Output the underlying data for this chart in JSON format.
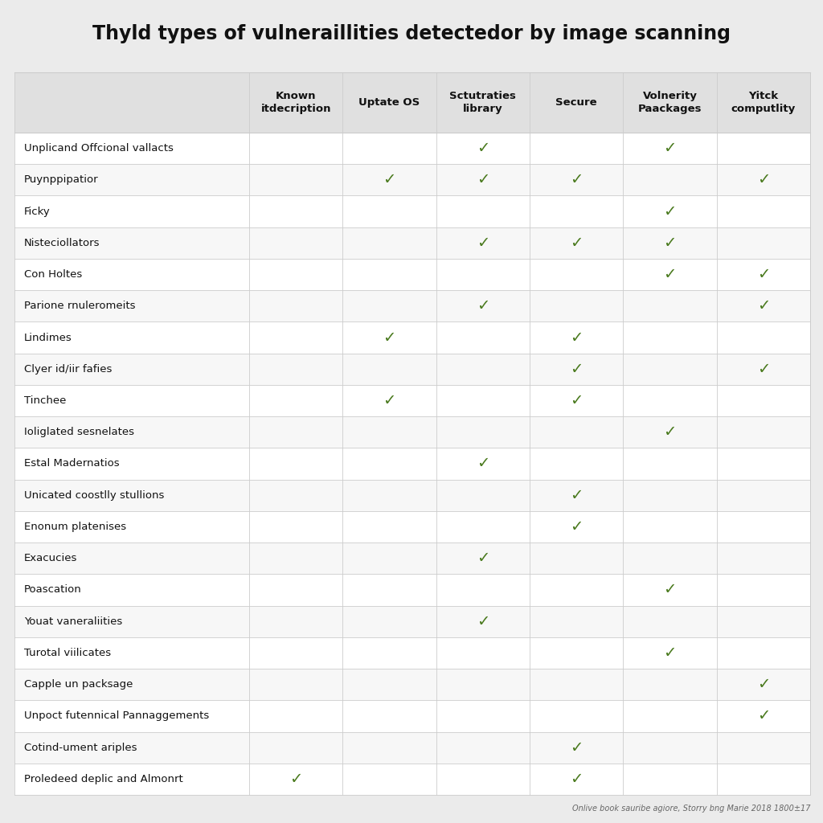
{
  "title": "Thyld types of vulneraillities detectedor by image scanning",
  "columns": [
    "Known\nitdecription",
    "Uptate OS",
    "Sctutraties\nlibrary",
    "Secure",
    "Volnerity\nPaackages",
    "Yitck\ncomputlity"
  ],
  "rows": [
    "Unplicand Offcional vallacts",
    "Puynppipatior",
    "Ficky",
    "Nisteciollators",
    "Con Holtes",
    "Parione rnuleromeits",
    "Lindimes",
    "Clyer id/iir fafies",
    "Tinchee",
    "Ioliglated sesnelates",
    "Estal Madernatios",
    "Unicated coostlly stullions",
    "Enonum platenises",
    "Exacucies",
    "Poascation",
    "Youat vaneraliities",
    "Turotal viilicates",
    "Capple un packsage",
    "Unpoct futennical Pannaggements",
    "Cotind-ument ariples",
    "Proledeed deplic and Almonrt"
  ],
  "checks": [
    [
      0,
      0,
      1,
      0,
      1,
      0
    ],
    [
      0,
      1,
      1,
      1,
      0,
      1
    ],
    [
      0,
      0,
      0,
      0,
      1,
      0
    ],
    [
      0,
      0,
      1,
      1,
      1,
      0
    ],
    [
      0,
      0,
      0,
      0,
      1,
      1
    ],
    [
      0,
      0,
      1,
      0,
      0,
      1
    ],
    [
      0,
      1,
      0,
      1,
      0,
      0
    ],
    [
      0,
      0,
      0,
      1,
      0,
      1
    ],
    [
      0,
      1,
      0,
      1,
      0,
      0
    ],
    [
      0,
      0,
      0,
      0,
      1,
      0
    ],
    [
      0,
      0,
      1,
      0,
      0,
      0
    ],
    [
      0,
      0,
      0,
      1,
      0,
      0
    ],
    [
      0,
      0,
      0,
      1,
      0,
      0
    ],
    [
      0,
      0,
      1,
      0,
      0,
      0
    ],
    [
      0,
      0,
      0,
      0,
      1,
      0
    ],
    [
      0,
      0,
      1,
      0,
      0,
      0
    ],
    [
      0,
      0,
      0,
      0,
      1,
      0
    ],
    [
      0,
      0,
      0,
      0,
      0,
      1
    ],
    [
      0,
      0,
      0,
      0,
      0,
      1
    ],
    [
      0,
      0,
      0,
      1,
      0,
      0
    ],
    [
      1,
      0,
      0,
      1,
      0,
      0
    ]
  ],
  "check_color": "#4a7a1e",
  "header_bg": "#e0e0e0",
  "row_bg_white": "#ffffff",
  "row_bg_gray": "#f7f7f7",
  "border_color": "#cccccc",
  "title_color": "#111111",
  "header_text_color": "#111111",
  "row_text_color": "#111111",
  "footer_text": "Onlive book sauribe agiore, Storry bng Marie 2018 1800±17",
  "background_color": "#ebebeb"
}
